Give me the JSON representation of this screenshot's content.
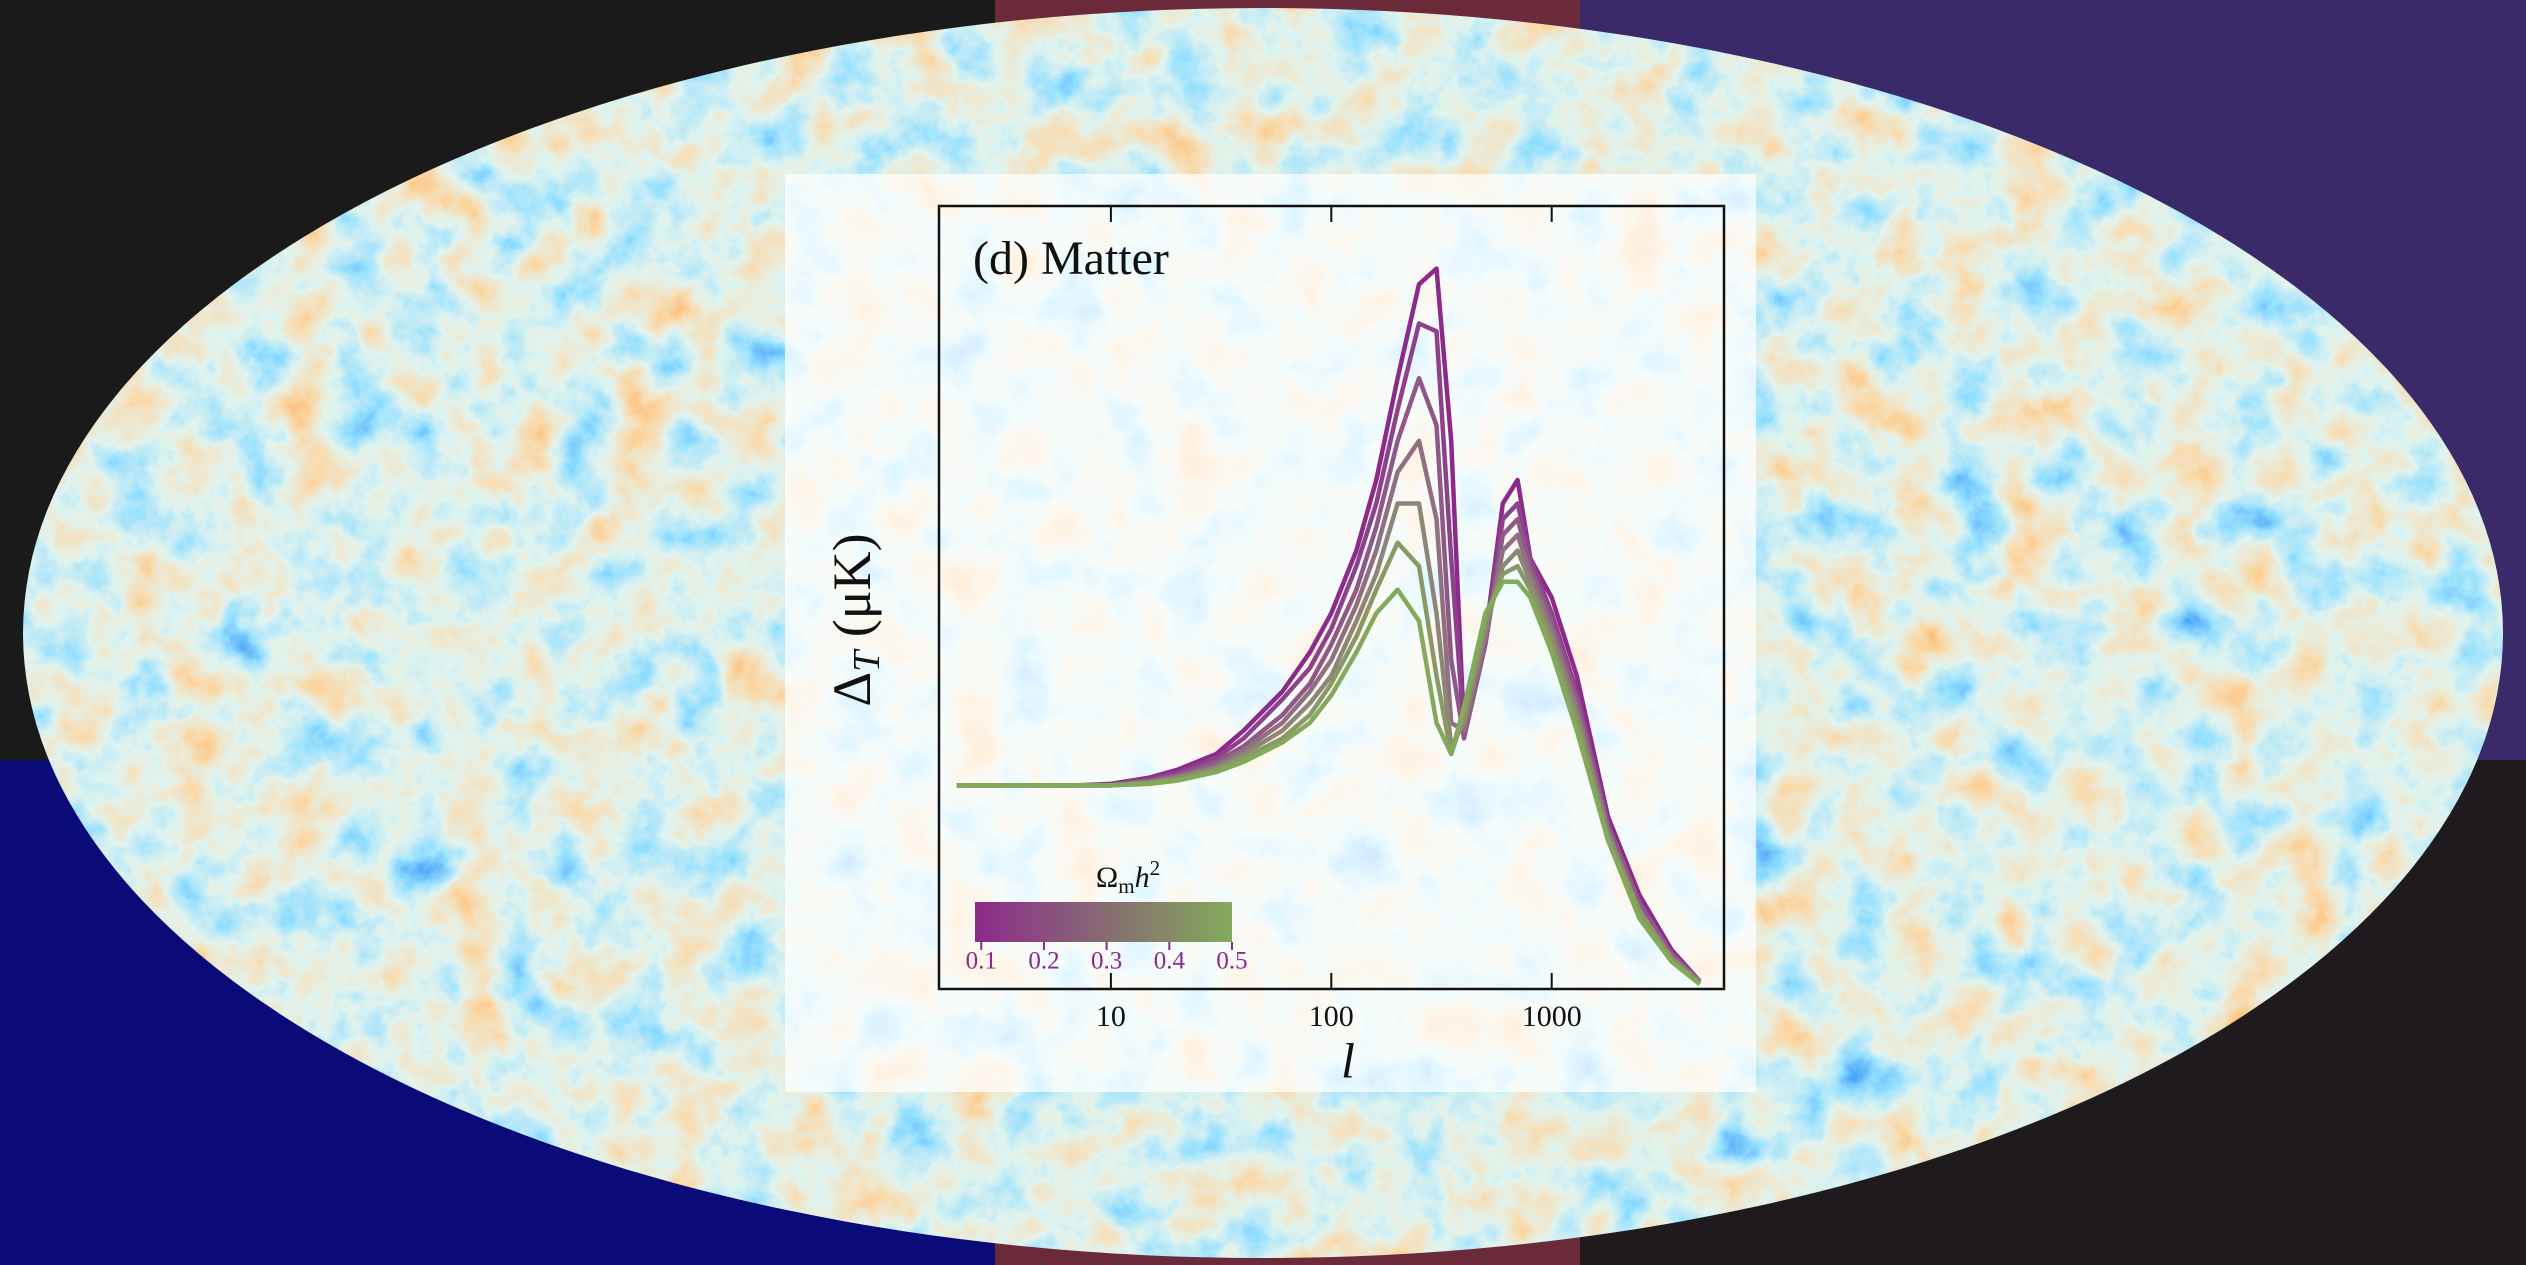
{
  "chart_data": {
    "type": "line",
    "title": "(d) Matter",
    "y_label": {
      "base": "Δ",
      "sub": "T",
      "rest": " (μK)"
    },
    "x_label": "l",
    "x_scale": "log",
    "x": [
      2,
      4,
      7,
      10,
      15,
      20,
      30,
      40,
      60,
      80,
      100,
      130,
      160,
      200,
      250,
      300,
      350,
      400,
      500,
      600,
      700,
      800,
      1000,
      1300,
      1800,
      2500,
      3500,
      4700
    ],
    "xlim": [
      1.66,
      6050
    ],
    "xticks": [
      10,
      100,
      1000
    ],
    "ylim": [
      0,
      100
    ],
    "series": [
      {
        "color": "#8c2a8c",
        "values": [
          26,
          26,
          26,
          26.2,
          27,
          28,
          30,
          33,
          38,
          43,
          48,
          56,
          65,
          78,
          90,
          92,
          70,
          33,
          45,
          62,
          65,
          55,
          50,
          40,
          22,
          12,
          5,
          1
        ]
      },
      {
        "color": "#8d418a",
        "values": [
          26,
          26,
          26,
          26.1,
          26.8,
          27.6,
          29.5,
          32,
          37,
          41,
          46,
          54,
          62,
          74,
          85,
          84,
          55,
          33,
          45,
          60,
          62,
          55,
          48,
          38,
          21,
          11,
          4.5,
          1
        ]
      },
      {
        "color": "#8f5888",
        "values": [
          26,
          26,
          26,
          26,
          26.6,
          27.3,
          29,
          31,
          35,
          39,
          44,
          51,
          59,
          70,
          78,
          72,
          42,
          32,
          44,
          58,
          60,
          54,
          47,
          37,
          21,
          11,
          4.5,
          1
        ]
      },
      {
        "color": "#906f80",
        "values": [
          26,
          26,
          26,
          26,
          26.5,
          27.1,
          28.5,
          30.5,
          34,
          38,
          42,
          49,
          56,
          66,
          70,
          60,
          34,
          33,
          45,
          56,
          58,
          53,
          46,
          36,
          20,
          10,
          4,
          1
        ]
      },
      {
        "color": "#8d8575",
        "values": [
          26,
          26,
          26,
          26,
          26.4,
          27,
          28.2,
          30,
          33,
          36.5,
          40,
          47,
          53,
          62,
          62,
          48,
          31,
          34,
          46,
          54,
          56,
          52,
          45,
          35,
          20,
          10,
          4,
          0.8
        ]
      },
      {
        "color": "#899866",
        "values": [
          26,
          26,
          26,
          26,
          26.3,
          26.8,
          28,
          29.5,
          32,
          35,
          39,
          45,
          51,
          57,
          54,
          40,
          30,
          35,
          47,
          53,
          54,
          51,
          44,
          34,
          19,
          10,
          3.5,
          0.7
        ]
      },
      {
        "color": "#83aa5a",
        "values": [
          26,
          26,
          26,
          26,
          26.2,
          26.6,
          27.7,
          29,
          31.5,
          34,
          37.5,
          43,
          48,
          51,
          47,
          34,
          30,
          36,
          48,
          52,
          52,
          50,
          43,
          33,
          19,
          9,
          3.5,
          0.6
        ]
      }
    ],
    "colorbar": {
      "label": {
        "base": "Ω",
        "sub": "m",
        "italic": "h",
        "sup": "2"
      },
      "lim": [
        0.09,
        0.5
      ],
      "ticks": [
        0.1,
        0.2,
        0.3,
        0.4,
        0.5
      ],
      "colors": [
        "#8c2a8c",
        "#83aa5a"
      ]
    }
  }
}
